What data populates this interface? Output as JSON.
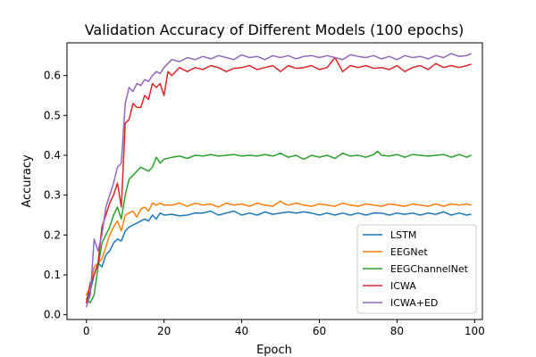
{
  "chart_data": {
    "type": "line",
    "title": "Validation Accuracy of Different Models (100 epochs)",
    "xlabel": "Epoch",
    "ylabel": "Accuracy",
    "xlim": [
      -5,
      102
    ],
    "ylim": [
      -0.012,
      0.682
    ],
    "xticks": [
      0,
      20,
      40,
      60,
      80,
      100
    ],
    "yticks": [
      0.0,
      0.1,
      0.2,
      0.3,
      0.4,
      0.5,
      0.6
    ],
    "xtick_labels": [
      "0",
      "20",
      "40",
      "60",
      "80",
      "100"
    ],
    "ytick_labels": [
      "0.0",
      "0.1",
      "0.2",
      "0.3",
      "0.4",
      "0.5",
      "0.6"
    ],
    "grid": false,
    "legend_position": "lower-right",
    "series": [
      {
        "name": "LSTM",
        "color": "#1f77b4",
        "x": [
          0,
          1,
          2,
          3,
          4,
          5,
          6,
          7,
          8,
          9,
          10,
          11,
          12,
          13,
          14,
          15,
          16,
          17,
          18,
          19,
          20,
          22,
          24,
          26,
          28,
          30,
          32,
          34,
          36,
          38,
          40,
          42,
          44,
          46,
          48,
          50,
          52,
          54,
          56,
          58,
          60,
          62,
          64,
          66,
          68,
          70,
          72,
          74,
          76,
          78,
          80,
          82,
          84,
          86,
          88,
          90,
          92,
          94,
          96,
          98,
          99
        ],
        "y": [
          0.03,
          0.06,
          0.1,
          0.13,
          0.12,
          0.15,
          0.16,
          0.18,
          0.19,
          0.185,
          0.21,
          0.22,
          0.225,
          0.23,
          0.235,
          0.24,
          0.235,
          0.25,
          0.24,
          0.255,
          0.25,
          0.252,
          0.248,
          0.25,
          0.255,
          0.255,
          0.26,
          0.25,
          0.255,
          0.26,
          0.25,
          0.255,
          0.25,
          0.258,
          0.252,
          0.255,
          0.258,
          0.255,
          0.258,
          0.255,
          0.25,
          0.255,
          0.25,
          0.255,
          0.25,
          0.255,
          0.25,
          0.255,
          0.255,
          0.25,
          0.255,
          0.252,
          0.255,
          0.25,
          0.255,
          0.252,
          0.258,
          0.25,
          0.255,
          0.25,
          0.252
        ]
      },
      {
        "name": "EEGNet",
        "color": "#ff7f0e",
        "x": [
          0,
          1,
          2,
          3,
          4,
          5,
          6,
          7,
          8,
          9,
          10,
          11,
          12,
          13,
          14,
          15,
          16,
          17,
          18,
          19,
          20,
          22,
          24,
          26,
          28,
          30,
          32,
          34,
          36,
          38,
          40,
          42,
          44,
          46,
          48,
          50,
          51,
          52,
          54,
          56,
          58,
          60,
          62,
          64,
          66,
          68,
          70,
          72,
          74,
          76,
          78,
          80,
          82,
          84,
          86,
          88,
          90,
          92,
          94,
          96,
          98,
          99
        ],
        "y": [
          0.05,
          0.07,
          0.12,
          0.13,
          0.14,
          0.17,
          0.2,
          0.22,
          0.235,
          0.21,
          0.25,
          0.255,
          0.26,
          0.245,
          0.265,
          0.27,
          0.26,
          0.28,
          0.275,
          0.28,
          0.275,
          0.275,
          0.28,
          0.272,
          0.28,
          0.275,
          0.278,
          0.27,
          0.28,
          0.275,
          0.278,
          0.272,
          0.28,
          0.275,
          0.272,
          0.285,
          0.278,
          0.275,
          0.28,
          0.275,
          0.272,
          0.278,
          0.275,
          0.272,
          0.28,
          0.275,
          0.272,
          0.278,
          0.275,
          0.272,
          0.278,
          0.275,
          0.272,
          0.278,
          0.275,
          0.272,
          0.278,
          0.272,
          0.278,
          0.275,
          0.278,
          0.275
        ]
      },
      {
        "name": "EEGChannelNet",
        "color": "#2ca02c",
        "x": [
          0,
          1,
          2,
          3,
          4,
          5,
          6,
          7,
          8,
          9,
          10,
          11,
          12,
          13,
          14,
          15,
          16,
          17,
          18,
          19,
          20,
          22,
          24,
          26,
          28,
          30,
          32,
          34,
          36,
          38,
          40,
          42,
          44,
          46,
          48,
          50,
          52,
          54,
          56,
          58,
          60,
          62,
          64,
          66,
          68,
          70,
          72,
          74,
          75,
          76,
          78,
          80,
          82,
          84,
          86,
          88,
          90,
          92,
          94,
          96,
          98,
          99
        ],
        "y": [
          0.04,
          0.03,
          0.05,
          0.12,
          0.18,
          0.2,
          0.22,
          0.25,
          0.27,
          0.24,
          0.3,
          0.34,
          0.35,
          0.36,
          0.37,
          0.365,
          0.36,
          0.37,
          0.395,
          0.38,
          0.39,
          0.395,
          0.398,
          0.392,
          0.4,
          0.398,
          0.402,
          0.398,
          0.4,
          0.402,
          0.398,
          0.4,
          0.398,
          0.402,
          0.398,
          0.405,
          0.395,
          0.4,
          0.39,
          0.4,
          0.395,
          0.4,
          0.392,
          0.405,
          0.398,
          0.4,
          0.395,
          0.402,
          0.41,
          0.4,
          0.398,
          0.402,
          0.395,
          0.402,
          0.4,
          0.398,
          0.4,
          0.402,
          0.395,
          0.402,
          0.395,
          0.4
        ]
      },
      {
        "name": "ICWA",
        "color": "#d62728",
        "x": [
          0,
          1,
          2,
          3,
          4,
          5,
          6,
          7,
          8,
          9,
          10,
          11,
          12,
          13,
          14,
          15,
          16,
          17,
          18,
          19,
          20,
          21,
          22,
          24,
          26,
          28,
          30,
          32,
          34,
          36,
          38,
          40,
          42,
          44,
          46,
          48,
          50,
          52,
          54,
          56,
          58,
          60,
          62,
          64,
          66,
          68,
          70,
          72,
          74,
          76,
          78,
          80,
          82,
          84,
          86,
          88,
          90,
          92,
          94,
          96,
          98,
          99
        ],
        "y": [
          0.03,
          0.08,
          0.1,
          0.13,
          0.22,
          0.25,
          0.28,
          0.3,
          0.33,
          0.27,
          0.48,
          0.49,
          0.53,
          0.52,
          0.52,
          0.55,
          0.54,
          0.58,
          0.57,
          0.58,
          0.55,
          0.61,
          0.6,
          0.62,
          0.61,
          0.62,
          0.615,
          0.625,
          0.62,
          0.61,
          0.618,
          0.62,
          0.625,
          0.615,
          0.62,
          0.625,
          0.61,
          0.625,
          0.618,
          0.62,
          0.625,
          0.615,
          0.62,
          0.645,
          0.61,
          0.625,
          0.62,
          0.625,
          0.618,
          0.62,
          0.615,
          0.625,
          0.61,
          0.62,
          0.625,
          0.615,
          0.63,
          0.62,
          0.625,
          0.62,
          0.625,
          0.628
        ]
      },
      {
        "name": "ICWA+ED",
        "color": "#9467bd",
        "x": [
          0,
          1,
          2,
          3,
          4,
          5,
          6,
          7,
          8,
          9,
          10,
          11,
          12,
          13,
          14,
          15,
          16,
          17,
          18,
          19,
          20,
          21,
          22,
          24,
          26,
          28,
          30,
          32,
          34,
          36,
          38,
          40,
          42,
          44,
          46,
          48,
          50,
          52,
          54,
          56,
          58,
          60,
          62,
          64,
          66,
          68,
          70,
          72,
          74,
          76,
          78,
          80,
          82,
          84,
          86,
          88,
          90,
          92,
          94,
          96,
          98,
          99
        ],
        "y": [
          0.02,
          0.05,
          0.19,
          0.16,
          0.2,
          0.27,
          0.3,
          0.33,
          0.37,
          0.38,
          0.53,
          0.57,
          0.56,
          0.58,
          0.575,
          0.59,
          0.585,
          0.6,
          0.61,
          0.605,
          0.62,
          0.63,
          0.64,
          0.635,
          0.645,
          0.64,
          0.648,
          0.642,
          0.65,
          0.645,
          0.64,
          0.652,
          0.645,
          0.648,
          0.64,
          0.65,
          0.645,
          0.65,
          0.642,
          0.648,
          0.65,
          0.645,
          0.65,
          0.645,
          0.64,
          0.652,
          0.648,
          0.645,
          0.65,
          0.642,
          0.648,
          0.64,
          0.65,
          0.645,
          0.648,
          0.642,
          0.65,
          0.645,
          0.655,
          0.648,
          0.65,
          0.655
        ]
      }
    ]
  }
}
